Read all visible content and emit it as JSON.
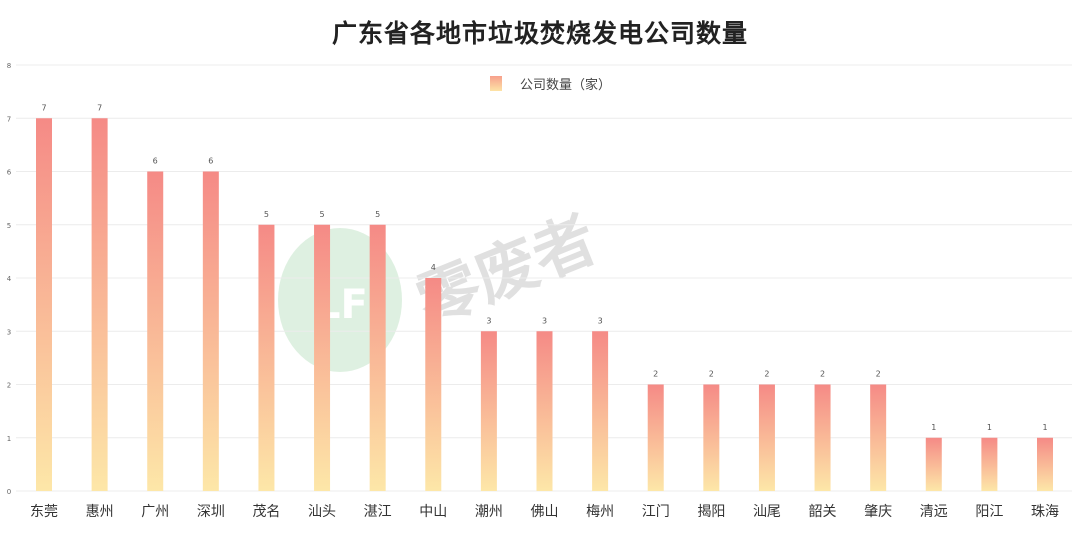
{
  "chart_data": {
    "type": "bar",
    "title": "广东省各地市垃圾焚烧发电公司数量",
    "legend": {
      "entries": [
        "公司数量（家）"
      ],
      "position": "top-center"
    },
    "categories": [
      "东莞",
      "惠州",
      "广州",
      "深圳",
      "茂名",
      "汕头",
      "湛江",
      "中山",
      "潮州",
      "佛山",
      "梅州",
      "江门",
      "揭阳",
      "汕尾",
      "韶关",
      "肇庆",
      "清远",
      "阳江",
      "珠海"
    ],
    "series": [
      {
        "name": "公司数量（家）",
        "values": [
          7,
          7,
          6,
          6,
          5,
          5,
          5,
          4,
          3,
          3,
          3,
          2,
          2,
          2,
          2,
          2,
          1,
          1,
          1
        ]
      }
    ],
    "ylim": [
      0,
      8
    ],
    "yticks": [
      "0",
      "1",
      "2",
      "3",
      "4",
      "5",
      "6",
      "7",
      "8"
    ],
    "grid": true,
    "xlabel": "",
    "ylabel": "",
    "colors": {
      "bar_top": "#f58a86",
      "bar_bottom": "#fde7a8",
      "grid": "#ececec"
    }
  },
  "watermark": {
    "text": "零废者",
    "logo_text": "LF"
  }
}
